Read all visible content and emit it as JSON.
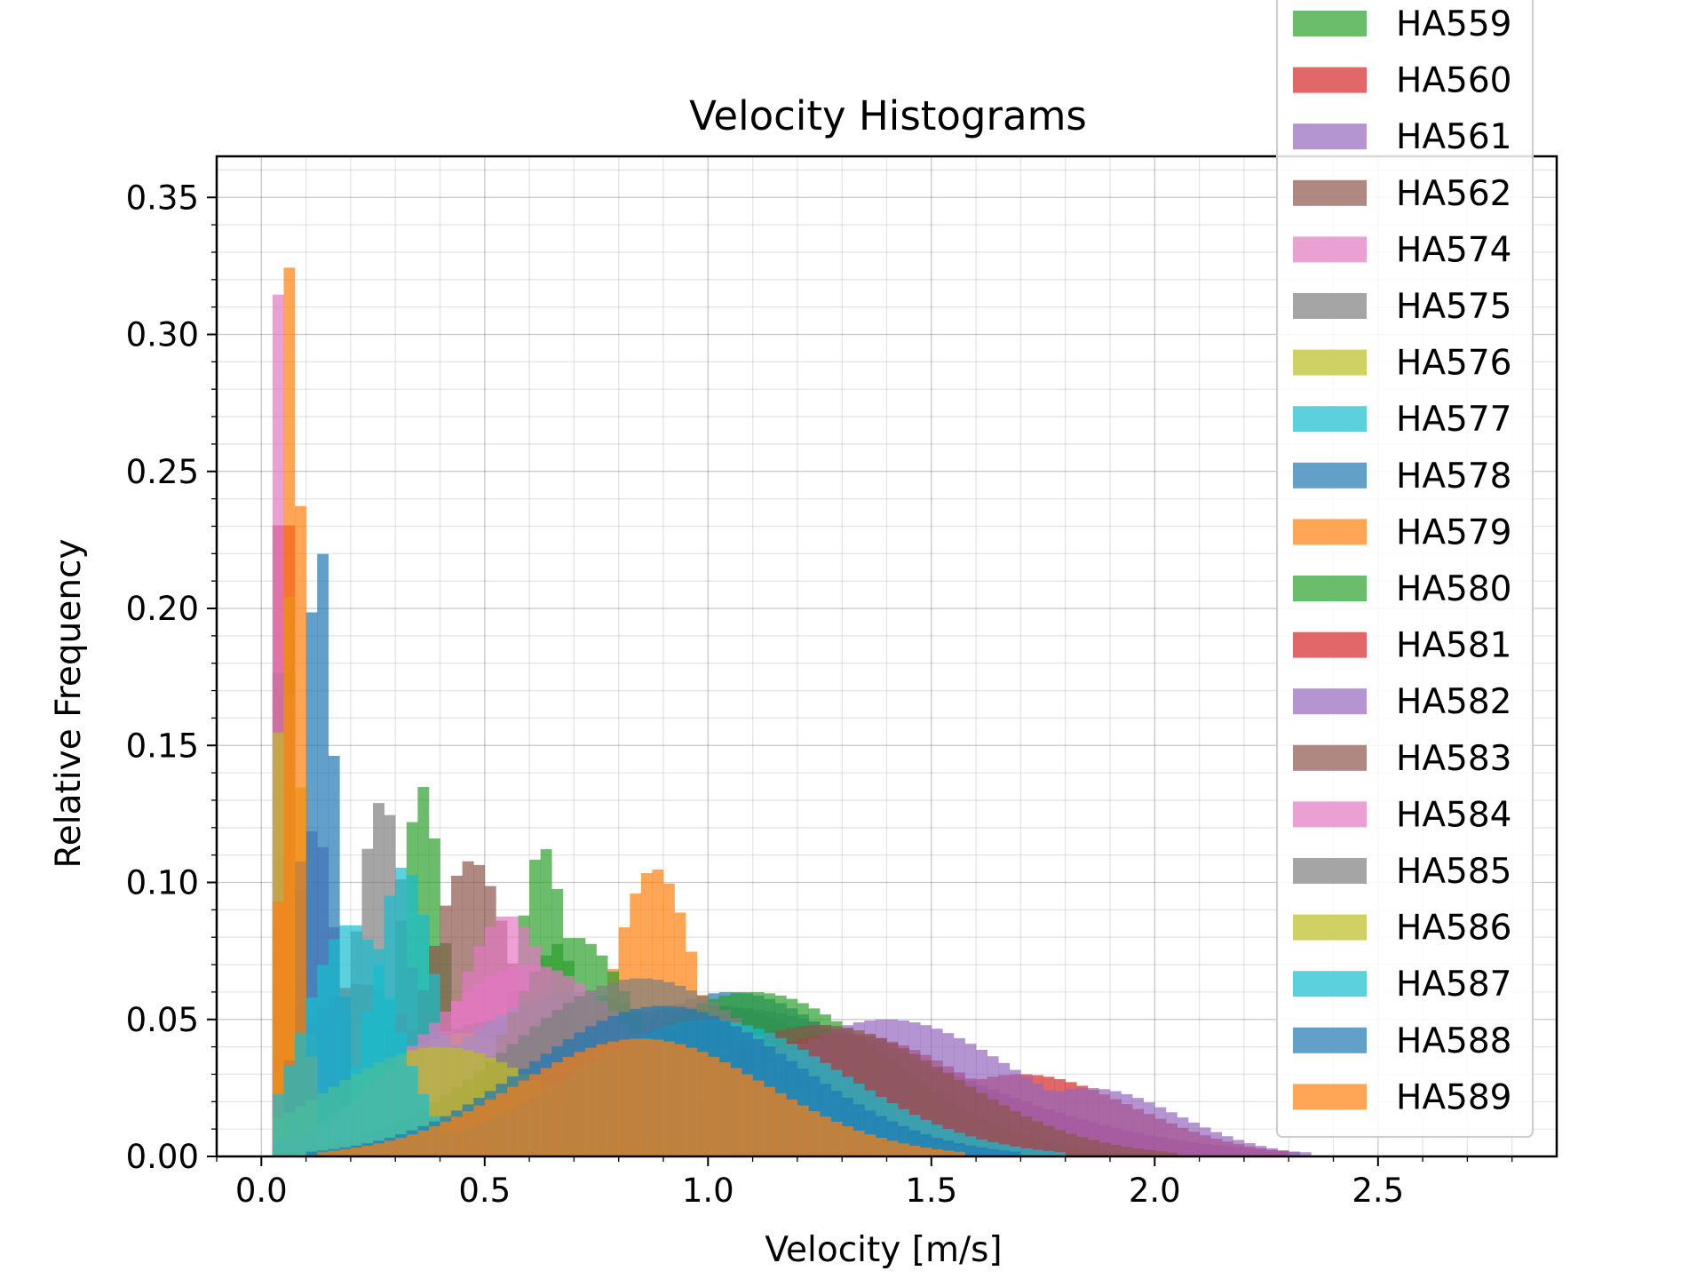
{
  "chart_data": {
    "type": "bar",
    "title": "Velocity Histograms",
    "xlabel": "Velocity [m/s]",
    "ylabel": "Relative Frequency",
    "xlim": [
      -0.1,
      2.9
    ],
    "ylim": [
      0,
      0.365
    ],
    "bin_width": 0.025,
    "grid": true,
    "legend_position": "upper-right",
    "xticks": [
      0.0,
      0.5,
      1.0,
      1.5,
      2.0,
      2.5
    ],
    "xtick_labels": [
      "0.0",
      "0.5",
      "1.0",
      "1.5",
      "2.0",
      "2.5"
    ],
    "yticks": [
      0.0,
      0.05,
      0.1,
      0.15,
      0.2,
      0.25,
      0.3,
      0.35
    ],
    "ytick_labels": [
      "0.00",
      "0.05",
      "0.10",
      "0.15",
      "0.20",
      "0.25",
      "0.30",
      "0.35"
    ],
    "series": [
      {
        "name": "HA559",
        "color": "#2ca02c",
        "peaks": [
          [
            0.05,
            0.12,
            0.03
          ],
          [
            0.36,
            0.135,
            0.05
          ],
          [
            0.63,
            0.113,
            0.06
          ],
          [
            1.0,
            0.055,
            0.35
          ]
        ]
      },
      {
        "name": "HA560",
        "color": "#d62728",
        "peaks": [
          [
            0.05,
            0.28,
            0.02
          ],
          [
            0.22,
            0.063,
            0.15
          ]
        ]
      },
      {
        "name": "HA561",
        "color": "#9467bd",
        "peaks": [
          [
            0.12,
            0.12,
            0.05
          ],
          [
            1.0,
            0.055,
            0.5
          ]
        ]
      },
      {
        "name": "HA562",
        "color": "#8c564b",
        "peaks": [
          [
            0.05,
            0.2,
            0.025
          ],
          [
            0.47,
            0.108,
            0.1
          ]
        ]
      },
      {
        "name": "HA574",
        "color": "#e377c2",
        "peaks": [
          [
            0.04,
            0.317,
            0.02
          ],
          [
            0.55,
            0.088,
            0.12
          ]
        ]
      },
      {
        "name": "HA575",
        "color": "#7f7f7f",
        "peaks": [
          [
            0.27,
            0.13,
            0.06
          ],
          [
            0.55,
            0.05,
            0.3
          ]
        ]
      },
      {
        "name": "HA576",
        "color": "#bcbd22",
        "peaks": [
          [
            0.06,
            0.205,
            0.03
          ],
          [
            0.45,
            0.045,
            0.2
          ]
        ]
      },
      {
        "name": "HA577",
        "color": "#17becf",
        "peaks": [
          [
            0.32,
            0.106,
            0.07
          ],
          [
            0.7,
            0.06,
            0.3
          ]
        ]
      },
      {
        "name": "HA578",
        "color": "#1f77b4",
        "peaks": [
          [
            0.13,
            0.225,
            0.035
          ],
          [
            1.05,
            0.06,
            0.3
          ]
        ]
      },
      {
        "name": "HA579",
        "color": "#ff7f0e",
        "peaks": [
          [
            0.07,
            0.348,
            0.02
          ],
          [
            0.88,
            0.105,
            0.1
          ]
        ]
      },
      {
        "name": "HA580",
        "color": "#2ca02c",
        "peaks": [
          [
            0.7,
            0.08,
            0.15
          ],
          [
            1.1,
            0.06,
            0.3
          ]
        ]
      },
      {
        "name": "HA581",
        "color": "#d62728",
        "peaks": [
          [
            1.7,
            0.03,
            0.25
          ],
          [
            1.3,
            0.045,
            0.3
          ]
        ]
      },
      {
        "name": "HA582",
        "color": "#9467bd",
        "peaks": [
          [
            1.4,
            0.05,
            0.3
          ],
          [
            1.85,
            0.025,
            0.2
          ]
        ]
      },
      {
        "name": "HA583",
        "color": "#8c564b",
        "peaks": [
          [
            1.25,
            0.048,
            0.3
          ]
        ]
      },
      {
        "name": "HA584",
        "color": "#e377c2",
        "peaks": [
          [
            0.6,
            0.07,
            0.25
          ]
        ]
      },
      {
        "name": "HA585",
        "color": "#7f7f7f",
        "peaks": [
          [
            0.85,
            0.065,
            0.3
          ]
        ]
      },
      {
        "name": "HA586",
        "color": "#bcbd22",
        "peaks": [
          [
            0.4,
            0.04,
            0.25
          ]
        ]
      },
      {
        "name": "HA587",
        "color": "#17becf",
        "peaks": [
          [
            0.2,
            0.085,
            0.1
          ],
          [
            1.0,
            0.05,
            0.3
          ]
        ]
      },
      {
        "name": "HA588",
        "color": "#1f77b4",
        "peaks": [
          [
            0.9,
            0.055,
            0.3
          ]
        ]
      },
      {
        "name": "HA589",
        "color": "#ff7f0e",
        "peaks": [
          [
            0.85,
            0.043,
            0.28
          ]
        ]
      }
    ]
  }
}
